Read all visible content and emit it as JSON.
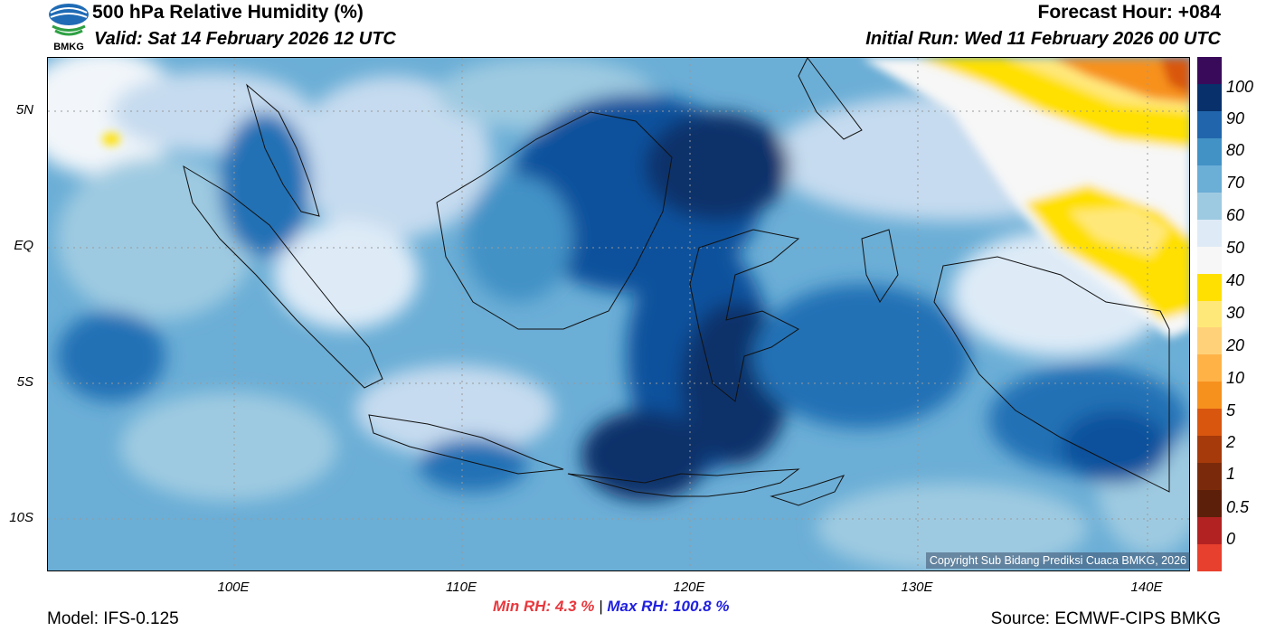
{
  "header": {
    "title": "500 hPa Relative Humidity (%)",
    "valid": "Valid: Sat 14 February 2026 12 UTC",
    "forecast_hour": "Forecast Hour: +084",
    "initial_run": "Initial Run: Wed 11 February 2026 00 UTC"
  },
  "logo": {
    "text": "BMKG"
  },
  "axes": {
    "lat_ticks": [
      "5N",
      "EQ",
      "5S",
      "10S"
    ],
    "lon_ticks": [
      "100E",
      "110E",
      "120E",
      "130E",
      "140E"
    ]
  },
  "stats": {
    "min_label": "Min RH:",
    "min_value": "4.3 %",
    "separator": "|",
    "max_label": "Max RH:",
    "max_value": "100.8 %"
  },
  "footer": {
    "model": "Model: IFS-0.125",
    "source": "Source: ECMWF-CIPS BMKG",
    "copyright": "Copyright Sub Bidang Prediksi Cuaca BMKG, 2026"
  },
  "colorbar": {
    "labels": [
      "100",
      "90",
      "80",
      "70",
      "60",
      "50",
      "40",
      "30",
      "20",
      "10",
      "5",
      "2",
      "1",
      "0.5",
      "0"
    ],
    "colors": [
      "#3a0a5a",
      "#08306b",
      "#2166ac",
      "#4292c6",
      "#6baed6",
      "#9ecae1",
      "#deebf7",
      "#f7f7f7",
      "#ffe000",
      "#ffe87a",
      "#ffd27a",
      "#ffb347",
      "#f7911e",
      "#d9560f",
      "#a63a0a",
      "#7a2a0a",
      "#5c1f0a",
      "#b22222",
      "#e8402e"
    ]
  },
  "colors": {
    "map_base": "#6baed6",
    "min_color": "#e8383d",
    "max_color": "#2020e0"
  }
}
